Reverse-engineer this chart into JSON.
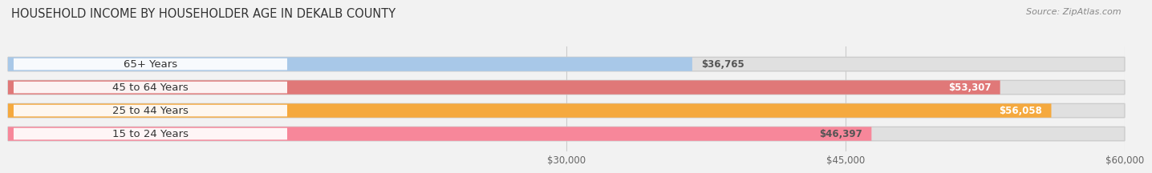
{
  "title": "HOUSEHOLD INCOME BY HOUSEHOLDER AGE IN DEKALB COUNTY",
  "source_text": "Source: ZipAtlas.com",
  "categories": [
    "15 to 24 Years",
    "25 to 44 Years",
    "45 to 64 Years",
    "65+ Years"
  ],
  "values": [
    46397,
    56058,
    53307,
    36765
  ],
  "bar_colors": [
    "#F7879A",
    "#F5A93E",
    "#E07878",
    "#A8C8E8"
  ],
  "value_labels": [
    "$46,397",
    "$56,058",
    "$53,307",
    "$36,765"
  ],
  "label_inside": [
    true,
    true,
    true,
    false
  ],
  "label_text_color_inside": [
    "#555555",
    "#ffffff",
    "#ffffff",
    "#555555"
  ],
  "xmin": 0,
  "xmax": 60000,
  "xticks": [
    30000,
    45000,
    60000
  ],
  "xticklabels": [
    "$30,000",
    "$45,000",
    "$60,000"
  ],
  "background_color": "#f2f2f2",
  "bar_bg_color": "#e0e0e0",
  "bar_label_bg": "#ffffff",
  "title_fontsize": 10.5,
  "source_fontsize": 8,
  "label_fontsize": 8.5,
  "cat_fontsize": 9.5,
  "bar_height": 0.6,
  "fig_width": 14.06,
  "fig_height": 2.33
}
